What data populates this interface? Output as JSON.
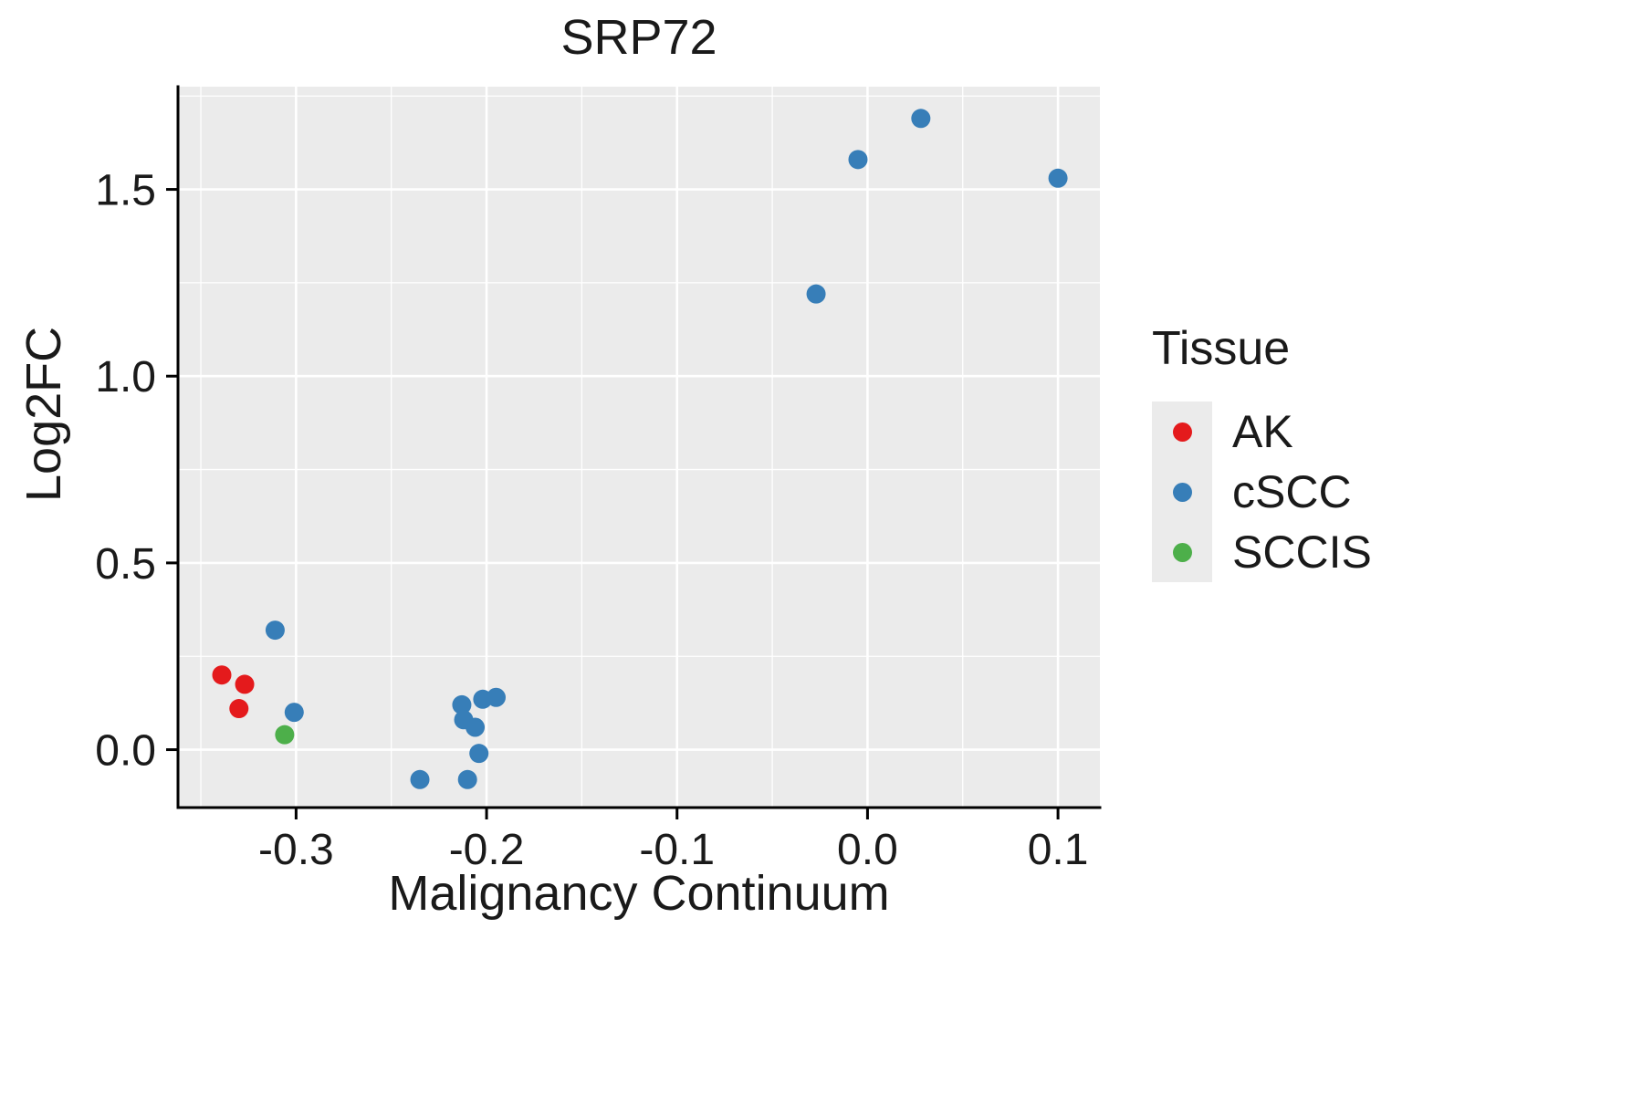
{
  "chart_data": {
    "type": "scatter",
    "title": "SRP72",
    "xlabel": "Malignancy Continuum",
    "ylabel": "Log2FC",
    "legend_title": "Tissue",
    "legend_position": "right",
    "grid": true,
    "panel_background": "#EBEBEB",
    "grid_color": "#FFFFFF",
    "axis_color": "#000000",
    "text_color": "#1a1a1a",
    "xlim": [
      -0.362,
      0.122
    ],
    "ylim": [
      -0.155,
      1.775
    ],
    "x_ticks": [
      -0.3,
      -0.2,
      -0.1,
      0.0,
      0.1
    ],
    "x_tick_labels": [
      "-0.3",
      "-0.2",
      "-0.1",
      "0.0",
      "0.1"
    ],
    "y_ticks": [
      0.0,
      0.5,
      1.0,
      1.5
    ],
    "y_tick_labels": [
      "0.0",
      "0.5",
      "1.0",
      "1.5"
    ],
    "x_minor_ticks": [
      -0.35,
      -0.25,
      -0.15,
      -0.05,
      0.05
    ],
    "y_minor_ticks": [
      0.25,
      0.75,
      1.25,
      1.75
    ],
    "series": [
      {
        "name": "AK",
        "color": "#E41A1C",
        "points": [
          [
            -0.339,
            0.2
          ],
          [
            -0.327,
            0.175
          ],
          [
            -0.33,
            0.11
          ]
        ]
      },
      {
        "name": "cSCC",
        "color": "#377EB8",
        "points": [
          [
            -0.311,
            0.32
          ],
          [
            -0.301,
            0.1
          ],
          [
            -0.235,
            -0.08
          ],
          [
            -0.213,
            0.12
          ],
          [
            -0.212,
            0.08
          ],
          [
            -0.21,
            -0.08
          ],
          [
            -0.206,
            0.06
          ],
          [
            -0.204,
            -0.01
          ],
          [
            -0.202,
            0.135
          ],
          [
            -0.195,
            0.14
          ],
          [
            -0.027,
            1.22
          ],
          [
            -0.005,
            1.58
          ],
          [
            0.028,
            1.69
          ],
          [
            0.1,
            1.53
          ]
        ]
      },
      {
        "name": "SCCIS",
        "color": "#4DAF4A",
        "points": [
          [
            -0.306,
            0.04
          ]
        ]
      }
    ]
  }
}
